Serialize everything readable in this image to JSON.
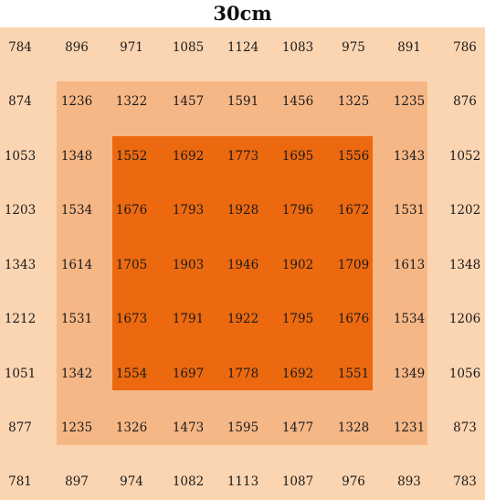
{
  "title": "30cm",
  "colors": {
    "outer_zone": "#fbd5b2",
    "middle_zone": "#f6b786",
    "inner_zone": "#ec690f",
    "text": "#1a1a1a"
  },
  "grid": [
    [
      784,
      896,
      971,
      1085,
      1124,
      1083,
      975,
      891,
      786
    ],
    [
      874,
      1236,
      1322,
      1457,
      1591,
      1456,
      1325,
      1235,
      876
    ],
    [
      1053,
      1348,
      1552,
      1692,
      1773,
      1695,
      1556,
      1343,
      1052
    ],
    [
      1203,
      1534,
      1676,
      1793,
      1928,
      1796,
      1672,
      1531,
      1202
    ],
    [
      1343,
      1614,
      1705,
      1903,
      1946,
      1902,
      1709,
      1613,
      1348
    ],
    [
      1212,
      1531,
      1673,
      1791,
      1922,
      1795,
      1676,
      1534,
      1206
    ],
    [
      1051,
      1342,
      1554,
      1697,
      1778,
      1692,
      1551,
      1349,
      1056
    ],
    [
      877,
      1235,
      1326,
      1473,
      1595,
      1477,
      1328,
      1231,
      873
    ],
    [
      781,
      897,
      974,
      1082,
      1113,
      1087,
      976,
      893,
      783
    ]
  ]
}
